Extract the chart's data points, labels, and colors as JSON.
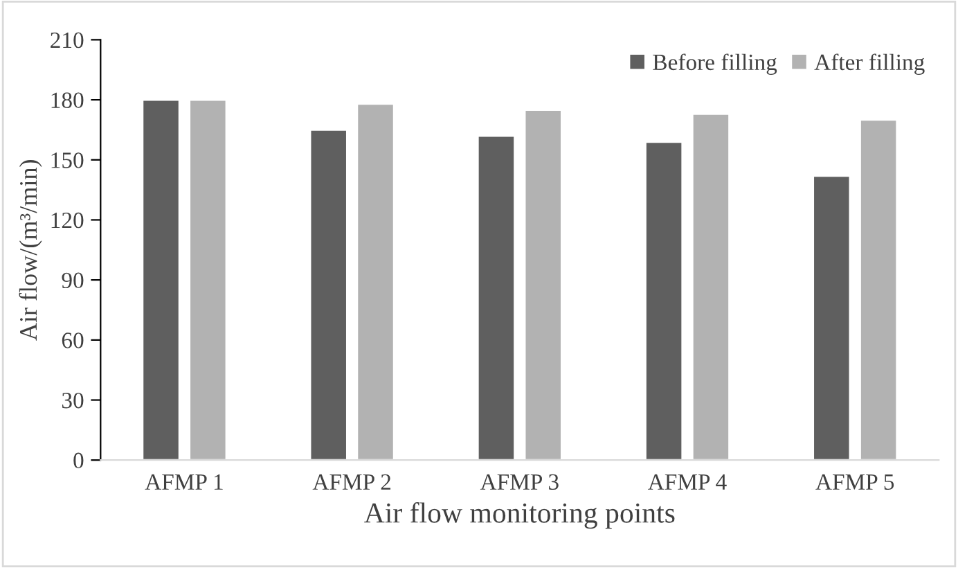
{
  "chart_data": {
    "type": "bar",
    "xlabel": "Air flow monitoring points",
    "ylabel": "Air flow/(m³/min)",
    "categories": [
      "AFMP 1",
      "AFMP 2",
      "AFMP 3",
      "AFMP 4",
      "AFMP 5"
    ],
    "series": [
      {
        "name": "Before filling",
        "color": "#5f5f5f",
        "values": [
          180,
          165,
          162,
          159,
          142
        ]
      },
      {
        "name": "After filling",
        "color": "#b2b2b2",
        "values": [
          180,
          178,
          175,
          173,
          170
        ]
      }
    ],
    "ylim": [
      0,
      210
    ],
    "yticks": [
      0,
      30,
      60,
      90,
      120,
      150,
      180,
      210
    ],
    "grid": false,
    "legend": "top right"
  }
}
